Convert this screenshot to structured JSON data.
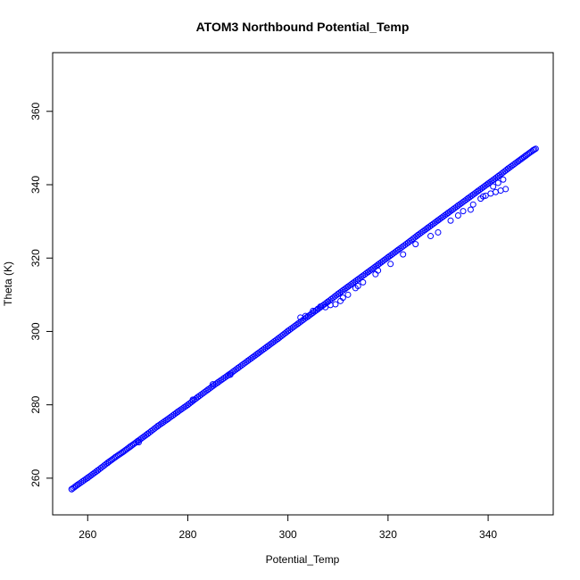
{
  "chart_data": {
    "type": "scatter",
    "title": "ATOM3 Northbound Potential_Temp",
    "xlabel": "Potential_Temp",
    "ylabel": "Theta (K)",
    "xlim": [
      253,
      353
    ],
    "ylim": [
      250,
      376
    ],
    "x_ticks": [
      260,
      280,
      300,
      320,
      340
    ],
    "y_ticks": [
      260,
      280,
      300,
      320,
      340,
      360
    ],
    "x_tick_labels": [
      "260",
      "280",
      "300",
      "320",
      "340"
    ],
    "y_tick_labels": [
      "260",
      "280",
      "300",
      "320",
      "340",
      "360"
    ],
    "marker": "open-circle",
    "color": "#0000ff",
    "grid": false,
    "legend": "none",
    "series": [
      {
        "points": [
          [
            256.8,
            257.0
          ],
          [
            258.0,
            258.2
          ],
          [
            260.0,
            260.1
          ],
          [
            262.0,
            262.1
          ],
          [
            264.0,
            264.2
          ],
          [
            265.5,
            265.7
          ],
          [
            267.0,
            267.1
          ],
          [
            268.5,
            268.6
          ],
          [
            270.0,
            270.1
          ],
          [
            272.0,
            272.1
          ],
          [
            274.0,
            274.2
          ],
          [
            276.0,
            276.1
          ],
          [
            278.0,
            278.1
          ],
          [
            280.0,
            280.0
          ],
          [
            282.0,
            282.1
          ],
          [
            284.0,
            284.1
          ],
          [
            286.0,
            286.1
          ],
          [
            288.0,
            288.0
          ],
          [
            290.0,
            290.0
          ],
          [
            292.0,
            292.0
          ],
          [
            294.0,
            294.0
          ],
          [
            296.0,
            296.0
          ],
          [
            298.0,
            298.0
          ],
          [
            300.0,
            300.1
          ],
          [
            302.0,
            302.1
          ],
          [
            304.0,
            304.1
          ],
          [
            306.0,
            306.1
          ],
          [
            308.0,
            308.1
          ],
          [
            310.0,
            310.2
          ],
          [
            312.0,
            312.2
          ],
          [
            314.0,
            314.2
          ],
          [
            316.0,
            316.2
          ],
          [
            318.0,
            318.2
          ],
          [
            320.0,
            320.2
          ],
          [
            322.0,
            322.2
          ],
          [
            324.0,
            324.2
          ],
          [
            326.0,
            326.3
          ],
          [
            328.0,
            328.3
          ],
          [
            330.0,
            330.3
          ],
          [
            332.0,
            332.3
          ],
          [
            334.0,
            334.3
          ],
          [
            336.0,
            336.3
          ],
          [
            338.0,
            338.3
          ],
          [
            340.0,
            340.3
          ],
          [
            342.0,
            342.3
          ],
          [
            344.0,
            344.4
          ],
          [
            346.0,
            346.4
          ],
          [
            347.5,
            347.9
          ],
          [
            349.0,
            349.4
          ],
          [
            349.5,
            349.8
          ],
          [
            270.2,
            269.8
          ],
          [
            281.0,
            281.4
          ],
          [
            285.0,
            285.6
          ],
          [
            288.5,
            288.2
          ],
          [
            302.5,
            303.8
          ],
          [
            303.5,
            304.2
          ],
          [
            305.0,
            305.6
          ],
          [
            306.5,
            306.8
          ],
          [
            308.5,
            307.2
          ],
          [
            310.5,
            308.3
          ],
          [
            312.0,
            310.0
          ],
          [
            313.5,
            311.8
          ],
          [
            315.0,
            313.4
          ],
          [
            317.5,
            315.6
          ],
          [
            320.5,
            318.4
          ],
          [
            323.0,
            321.0
          ],
          [
            325.5,
            323.8
          ],
          [
            328.5,
            326.0
          ],
          [
            330.0,
            327.0
          ],
          [
            332.5,
            330.2
          ],
          [
            335.0,
            332.8
          ],
          [
            337.0,
            334.6
          ],
          [
            338.5,
            336.2
          ],
          [
            339.5,
            337.0
          ],
          [
            340.5,
            337.6
          ],
          [
            341.5,
            338.0
          ],
          [
            342.5,
            338.4
          ],
          [
            343.5,
            338.8
          ],
          [
            341.0,
            339.5
          ],
          [
            342.0,
            340.5
          ],
          [
            343.0,
            341.4
          ],
          [
            339.0,
            336.8
          ],
          [
            336.5,
            333.2
          ],
          [
            334.0,
            331.6
          ],
          [
            318.0,
            316.6
          ],
          [
            314.0,
            312.4
          ],
          [
            311.0,
            309.2
          ],
          [
            309.5,
            307.4
          ],
          [
            307.5,
            306.6
          ],
          [
            306.0,
            306.2
          ]
        ]
      }
    ]
  }
}
